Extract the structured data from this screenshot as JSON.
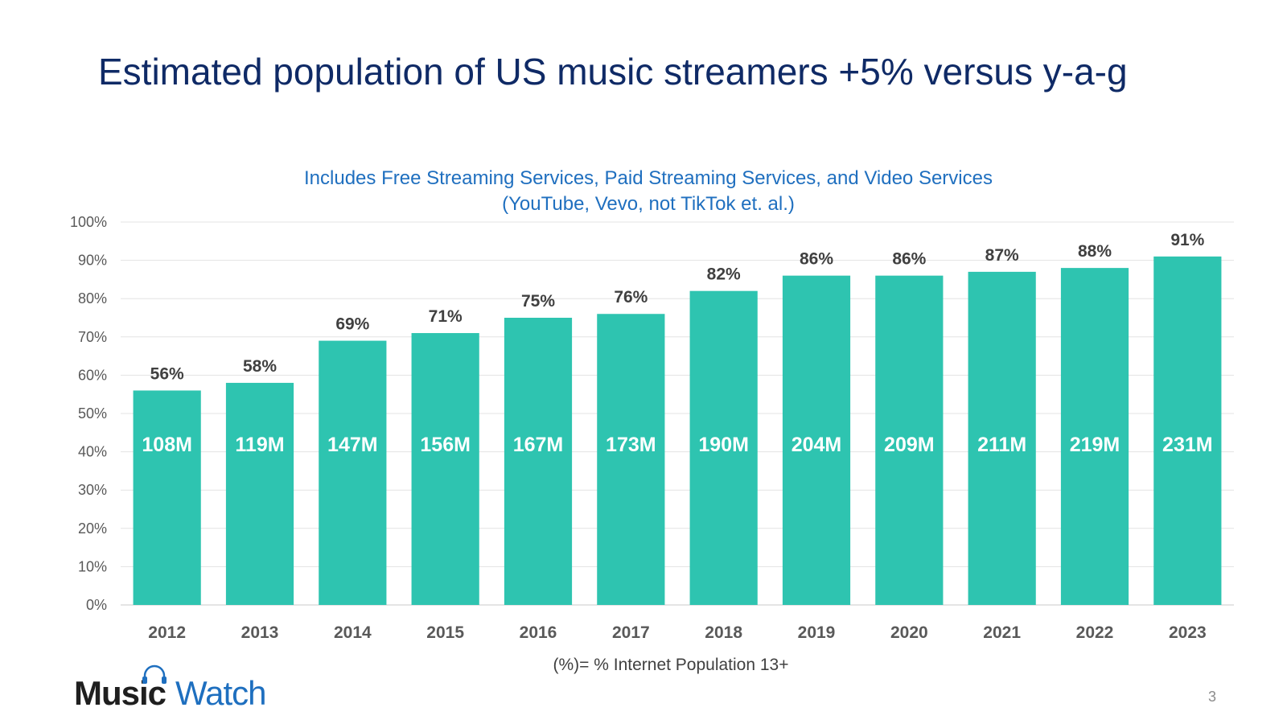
{
  "slide": {
    "title": "Estimated population of US music streamers +5% versus y-a-g",
    "page_number": "3"
  },
  "logo": {
    "part1": "Music",
    "part2": "Watch",
    "icon": "headphones-icon"
  },
  "colors": {
    "bar": "#2ec4b0",
    "title": "#0f2a66",
    "subtitle": "#1f6fbf",
    "grid": "#e3e3e3",
    "axis_text": "#595959",
    "bar_label": "#404040",
    "inner_label": "#ffffff"
  },
  "chart_data": {
    "type": "bar",
    "subtitle_lines": [
      "Includes Free Streaming Services, Paid Streaming Services, and Video Services",
      "(YouTube, Vevo, not TikTok et. al.)"
    ],
    "categories": [
      "2012",
      "2013",
      "2014",
      "2015",
      "2016",
      "2017",
      "2018",
      "2019",
      "2020",
      "2021",
      "2022",
      "2023"
    ],
    "values": [
      56,
      58,
      69,
      71,
      75,
      76,
      82,
      86,
      86,
      87,
      88,
      91
    ],
    "value_labels": [
      "56%",
      "58%",
      "69%",
      "71%",
      "75%",
      "76%",
      "82%",
      "86%",
      "86%",
      "87%",
      "88%",
      "91%"
    ],
    "inner_labels": [
      "108M",
      "119M",
      "147M",
      "156M",
      "167M",
      "173M",
      "190M",
      "204M",
      "209M",
      "211M",
      "219M",
      "231M"
    ],
    "ylim": [
      0,
      100
    ],
    "yticks": [
      0,
      10,
      20,
      30,
      40,
      50,
      60,
      70,
      80,
      90,
      100
    ],
    "ytick_labels": [
      "0%",
      "10%",
      "20%",
      "30%",
      "40%",
      "50%",
      "60%",
      "70%",
      "80%",
      "90%",
      "100%"
    ],
    "footnote": "(%)= % Internet Population 13+",
    "grid": true
  }
}
